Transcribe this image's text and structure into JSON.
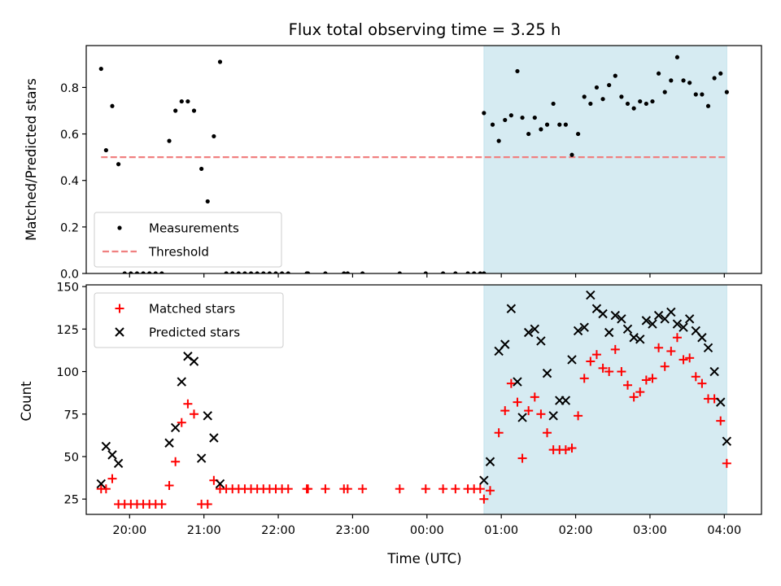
{
  "title": "Flux total observing time = 3.25 h",
  "x_axis": {
    "label": "Time (UTC)",
    "range": [
      "19:25",
      "04:30"
    ],
    "ticks": [
      "20:00",
      "21:00",
      "22:00",
      "23:00",
      "00:00",
      "01:00",
      "02:00",
      "03:00",
      "04:00"
    ]
  },
  "highlight_span": {
    "start": "00:46",
    "end": "04:02",
    "color": "#add8e6"
  },
  "chart_data": [
    {
      "type": "scatter",
      "name": "ratio-panel",
      "ylabel": "Matched/Predicted stars",
      "ylim": [
        0,
        0.98
      ],
      "yticks": [
        "0.0",
        "0.2",
        "0.4",
        "0.6",
        "0.8"
      ],
      "grid": false,
      "legend": {
        "position": "lower-left",
        "entries": [
          "Measurements",
          "Threshold"
        ]
      },
      "threshold": {
        "name": "Threshold",
        "value": 0.5,
        "x_start": "19:37",
        "x_end": "04:02",
        "color": "#f08080",
        "style": "dashed"
      },
      "series": [
        {
          "name": "Measurements",
          "color": "#000000",
          "marker": "dot",
          "points": [
            [
              "19:37",
              0.88
            ],
            [
              "19:41",
              0.53
            ],
            [
              "19:46",
              0.72
            ],
            [
              "19:51",
              0.47
            ],
            [
              "19:56",
              0.0
            ],
            [
              "20:01",
              0.0
            ],
            [
              "20:06",
              0.0
            ],
            [
              "20:11",
              0.0
            ],
            [
              "20:16",
              0.0
            ],
            [
              "20:21",
              0.0
            ],
            [
              "20:26",
              0.0
            ],
            [
              "20:32",
              0.57
            ],
            [
              "20:37",
              0.7
            ],
            [
              "20:42",
              0.74
            ],
            [
              "20:47",
              0.74
            ],
            [
              "20:52",
              0.7
            ],
            [
              "20:58",
              0.45
            ],
            [
              "21:03",
              0.31
            ],
            [
              "21:08",
              0.59
            ],
            [
              "21:13",
              0.91
            ],
            [
              "21:18",
              0.0
            ],
            [
              "21:23",
              0.0
            ],
            [
              "21:28",
              0.0
            ],
            [
              "21:33",
              0.0
            ],
            [
              "21:38",
              0.0
            ],
            [
              "21:43",
              0.0
            ],
            [
              "21:48",
              0.0
            ],
            [
              "21:53",
              0.0
            ],
            [
              "21:58",
              0.0
            ],
            [
              "22:03",
              0.0
            ],
            [
              "22:08",
              0.0
            ],
            [
              "22:23",
              0.0
            ],
            [
              "22:24",
              0.0
            ],
            [
              "22:38",
              0.0
            ],
            [
              "22:53",
              0.0
            ],
            [
              "22:56",
              0.0
            ],
            [
              "23:08",
              0.0
            ],
            [
              "23:38",
              0.0
            ],
            [
              "23:59",
              0.0
            ],
            [
              "00:13",
              0.0
            ],
            [
              "00:23",
              0.0
            ],
            [
              "00:33",
              0.0
            ],
            [
              "00:38",
              0.0
            ],
            [
              "00:43",
              0.0
            ],
            [
              "00:46",
              0.0
            ],
            [
              "00:46",
              0.69
            ],
            [
              "00:53",
              0.64
            ],
            [
              "00:58",
              0.57
            ],
            [
              "01:03",
              0.66
            ],
            [
              "01:08",
              0.68
            ],
            [
              "01:13",
              0.87
            ],
            [
              "01:17",
              0.67
            ],
            [
              "01:22",
              0.6
            ],
            [
              "01:27",
              0.67
            ],
            [
              "01:32",
              0.62
            ],
            [
              "01:37",
              0.64
            ],
            [
              "01:42",
              0.73
            ],
            [
              "01:47",
              0.64
            ],
            [
              "01:52",
              0.64
            ],
            [
              "01:57",
              0.51
            ],
            [
              "02:02",
              0.6
            ],
            [
              "02:07",
              0.76
            ],
            [
              "02:12",
              0.73
            ],
            [
              "02:17",
              0.8
            ],
            [
              "02:22",
              0.75
            ],
            [
              "02:27",
              0.81
            ],
            [
              "02:32",
              0.85
            ],
            [
              "02:37",
              0.76
            ],
            [
              "02:42",
              0.73
            ],
            [
              "02:47",
              0.71
            ],
            [
              "02:52",
              0.74
            ],
            [
              "02:57",
              0.73
            ],
            [
              "03:02",
              0.74
            ],
            [
              "03:07",
              0.86
            ],
            [
              "03:12",
              0.78
            ],
            [
              "03:17",
              0.83
            ],
            [
              "03:22",
              0.93
            ],
            [
              "03:27",
              0.83
            ],
            [
              "03:32",
              0.82
            ],
            [
              "03:37",
              0.77
            ],
            [
              "03:42",
              0.77
            ],
            [
              "03:47",
              0.72
            ],
            [
              "03:52",
              0.84
            ],
            [
              "03:57",
              0.86
            ],
            [
              "04:02",
              0.78
            ]
          ]
        }
      ]
    },
    {
      "type": "scatter",
      "name": "count-panel",
      "ylabel": "Count",
      "ylim": [
        16,
        151
      ],
      "yticks": [
        "25",
        "50",
        "75",
        "100",
        "125",
        "150"
      ],
      "grid": false,
      "legend": {
        "position": "upper-left",
        "entries": [
          "Matched stars",
          "Predicted stars"
        ]
      },
      "series": [
        {
          "name": "Matched stars",
          "color": "#ff0000",
          "marker": "plus",
          "points": [
            [
              "19:37",
              31
            ],
            [
              "19:41",
              31
            ],
            [
              "19:46",
              37
            ],
            [
              "19:51",
              22
            ],
            [
              "19:56",
              22
            ],
            [
              "20:01",
              22
            ],
            [
              "20:06",
              22
            ],
            [
              "20:11",
              22
            ],
            [
              "20:16",
              22
            ],
            [
              "20:21",
              22
            ],
            [
              "20:26",
              22
            ],
            [
              "20:32",
              33
            ],
            [
              "20:37",
              47
            ],
            [
              "20:42",
              70
            ],
            [
              "20:47",
              81
            ],
            [
              "20:52",
              75
            ],
            [
              "20:58",
              22
            ],
            [
              "21:03",
              22
            ],
            [
              "21:08",
              36
            ],
            [
              "21:13",
              31
            ],
            [
              "21:18",
              31
            ],
            [
              "21:23",
              31
            ],
            [
              "21:28",
              31
            ],
            [
              "21:33",
              31
            ],
            [
              "21:38",
              31
            ],
            [
              "21:43",
              31
            ],
            [
              "21:48",
              31
            ],
            [
              "21:53",
              31
            ],
            [
              "21:58",
              31
            ],
            [
              "22:03",
              31
            ],
            [
              "22:08",
              31
            ],
            [
              "22:23",
              31
            ],
            [
              "22:24",
              31
            ],
            [
              "22:38",
              31
            ],
            [
              "22:53",
              31
            ],
            [
              "22:56",
              31
            ],
            [
              "23:08",
              31
            ],
            [
              "23:38",
              31
            ],
            [
              "23:59",
              31
            ],
            [
              "00:13",
              31
            ],
            [
              "00:23",
              31
            ],
            [
              "00:33",
              31
            ],
            [
              "00:38",
              31
            ],
            [
              "00:43",
              31
            ],
            [
              "00:46",
              25
            ],
            [
              "00:51",
              30
            ],
            [
              "00:58",
              64
            ],
            [
              "01:03",
              77
            ],
            [
              "01:08",
              93
            ],
            [
              "01:13",
              82
            ],
            [
              "01:17",
              49
            ],
            [
              "01:22",
              77
            ],
            [
              "01:27",
              85
            ],
            [
              "01:32",
              75
            ],
            [
              "01:37",
              64
            ],
            [
              "01:42",
              54
            ],
            [
              "01:47",
              54
            ],
            [
              "01:52",
              54
            ],
            [
              "01:57",
              55
            ],
            [
              "02:02",
              74
            ],
            [
              "02:07",
              96
            ],
            [
              "02:12",
              106
            ],
            [
              "02:17",
              110
            ],
            [
              "02:22",
              102
            ],
            [
              "02:27",
              100
            ],
            [
              "02:32",
              113
            ],
            [
              "02:37",
              100
            ],
            [
              "02:42",
              92
            ],
            [
              "02:47",
              85
            ],
            [
              "02:52",
              88
            ],
            [
              "02:57",
              95
            ],
            [
              "03:02",
              96
            ],
            [
              "03:07",
              114
            ],
            [
              "03:12",
              103
            ],
            [
              "03:17",
              112
            ],
            [
              "03:22",
              120
            ],
            [
              "03:27",
              107
            ],
            [
              "03:32",
              108
            ],
            [
              "03:37",
              97
            ],
            [
              "03:42",
              93
            ],
            [
              "03:47",
              84
            ],
            [
              "03:52",
              84
            ],
            [
              "03:57",
              71
            ],
            [
              "04:02",
              46
            ]
          ]
        },
        {
          "name": "Predicted stars",
          "color": "#000000",
          "marker": "x",
          "points": [
            [
              "19:37",
              34
            ],
            [
              "19:41",
              56
            ],
            [
              "19:46",
              51
            ],
            [
              "19:51",
              46
            ],
            [
              "20:32",
              58
            ],
            [
              "20:37",
              67
            ],
            [
              "20:42",
              94
            ],
            [
              "20:47",
              109
            ],
            [
              "20:52",
              106
            ],
            [
              "20:58",
              49
            ],
            [
              "21:03",
              74
            ],
            [
              "21:08",
              61
            ],
            [
              "21:13",
              34
            ],
            [
              "00:46",
              36
            ],
            [
              "00:51",
              47
            ],
            [
              "00:58",
              112
            ],
            [
              "01:03",
              116
            ],
            [
              "01:08",
              137
            ],
            [
              "01:13",
              94
            ],
            [
              "01:17",
              73
            ],
            [
              "01:22",
              123
            ],
            [
              "01:27",
              125
            ],
            [
              "01:32",
              118
            ],
            [
              "01:37",
              99
            ],
            [
              "01:42",
              74
            ],
            [
              "01:47",
              83
            ],
            [
              "01:52",
              83
            ],
            [
              "01:57",
              107
            ],
            [
              "02:02",
              124
            ],
            [
              "02:07",
              126
            ],
            [
              "02:12",
              145
            ],
            [
              "02:17",
              137
            ],
            [
              "02:22",
              134
            ],
            [
              "02:27",
              123
            ],
            [
              "02:32",
              133
            ],
            [
              "02:37",
              131
            ],
            [
              "02:42",
              125
            ],
            [
              "02:47",
              120
            ],
            [
              "02:52",
              119
            ],
            [
              "02:57",
              130
            ],
            [
              "03:02",
              128
            ],
            [
              "03:07",
              133
            ],
            [
              "03:12",
              131
            ],
            [
              "03:17",
              135
            ],
            [
              "03:22",
              128
            ],
            [
              "03:27",
              126
            ],
            [
              "03:32",
              131
            ],
            [
              "03:37",
              124
            ],
            [
              "03:42",
              120
            ],
            [
              "03:47",
              114
            ],
            [
              "03:52",
              100
            ],
            [
              "03:57",
              82
            ],
            [
              "04:02",
              59
            ]
          ]
        }
      ]
    }
  ]
}
